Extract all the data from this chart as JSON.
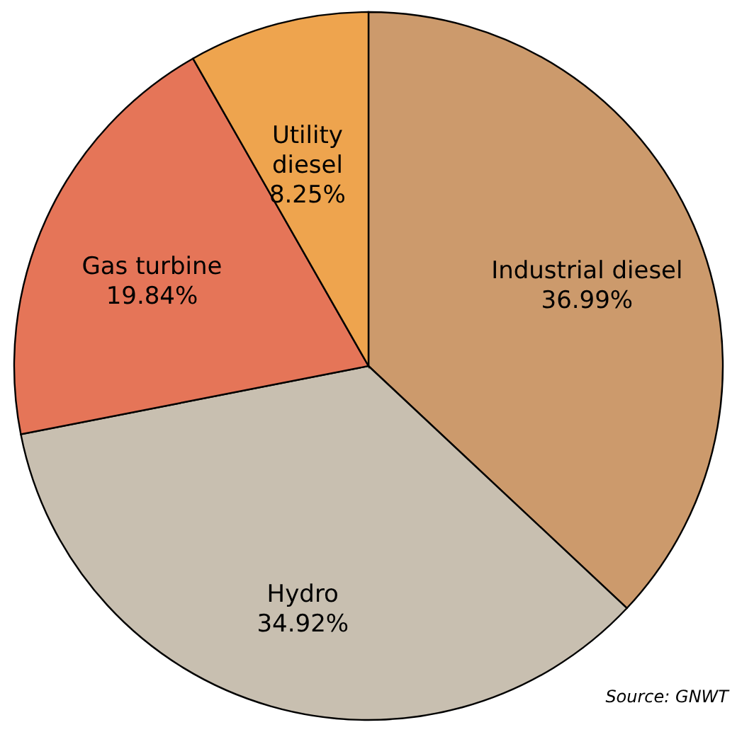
{
  "chart_data": {
    "type": "pie",
    "categories": [
      "Industrial diesel",
      "Hydro",
      "Gas turbine",
      "Utility diesel"
    ],
    "values": [
      36.99,
      34.92,
      19.84,
      8.25
    ],
    "value_labels": [
      "36.99%",
      "34.92%",
      "19.84%",
      "8.25%"
    ],
    "colors": [
      "#cc9a6c",
      "#c8bfb0",
      "#e57558",
      "#eea44e"
    ],
    "annotations": [
      "Source: GNWT"
    ]
  }
}
